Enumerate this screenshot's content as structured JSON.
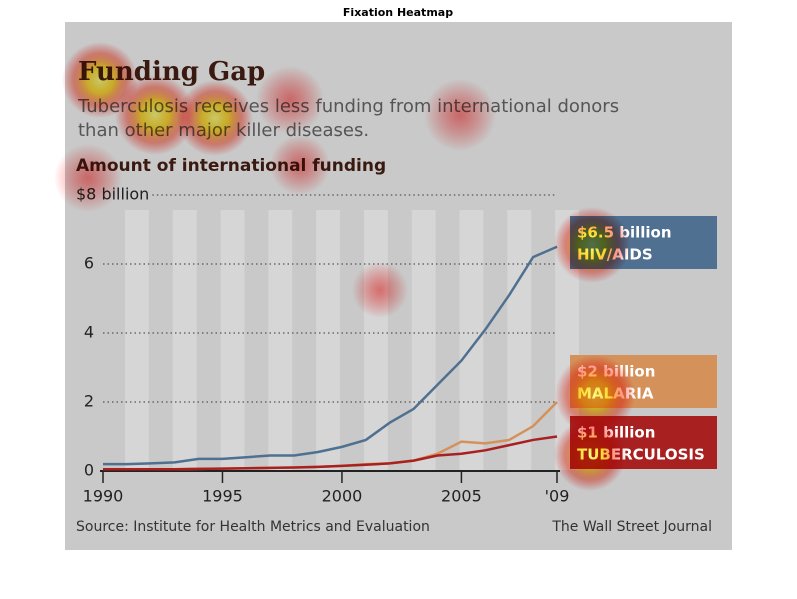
{
  "figure_title": "Fixation Heatmap",
  "chart_data": {
    "type": "line",
    "title": "Funding Gap",
    "subtitle_lines": [
      "Tuberculosis receives less funding from international donors",
      "than other major killer diseases."
    ],
    "y_label": "Amount of international funding",
    "x": [
      1990,
      1991,
      1992,
      1993,
      1994,
      1995,
      1996,
      1997,
      1998,
      1999,
      2000,
      2001,
      2002,
      2003,
      2004,
      2005,
      2006,
      2007,
      2008,
      2009
    ],
    "xlim": [
      1990,
      2009
    ],
    "xticks": [
      1990,
      1995,
      2000,
      2005,
      {
        "value": 2009,
        "label": "'09"
      }
    ],
    "ylim": [
      0,
      8
    ],
    "yticks": [
      0,
      2,
      4,
      6,
      {
        "value": 8,
        "label": "$8 billion"
      }
    ],
    "grid": true,
    "series": [
      {
        "name": "HIV/AIDS",
        "color": "#4f7090",
        "end_label": "$6.5 billion",
        "values": [
          0.2,
          0.2,
          0.22,
          0.25,
          0.35,
          0.35,
          0.4,
          0.45,
          0.45,
          0.55,
          0.7,
          0.9,
          1.4,
          1.8,
          2.5,
          3.2,
          4.1,
          5.1,
          6.2,
          6.5
        ]
      },
      {
        "name": "MALARIA",
        "color": "#d4915a",
        "end_label": "$2 billion",
        "values": [
          0.05,
          0.05,
          0.05,
          0.05,
          0.06,
          0.07,
          0.08,
          0.09,
          0.1,
          0.12,
          0.15,
          0.2,
          0.22,
          0.3,
          0.5,
          0.85,
          0.8,
          0.9,
          1.3,
          2.0
        ]
      },
      {
        "name": "TUBERCULOSIS",
        "color": "#a82020",
        "end_label": "$1 billion",
        "values": [
          0.05,
          0.05,
          0.05,
          0.05,
          0.06,
          0.07,
          0.08,
          0.09,
          0.1,
          0.12,
          0.15,
          0.18,
          0.22,
          0.3,
          0.45,
          0.5,
          0.6,
          0.75,
          0.9,
          1.0
        ]
      }
    ],
    "source": "Source: Institute for Health Metrics and Evaluation",
    "credit": "The Wall Street Journal"
  }
}
